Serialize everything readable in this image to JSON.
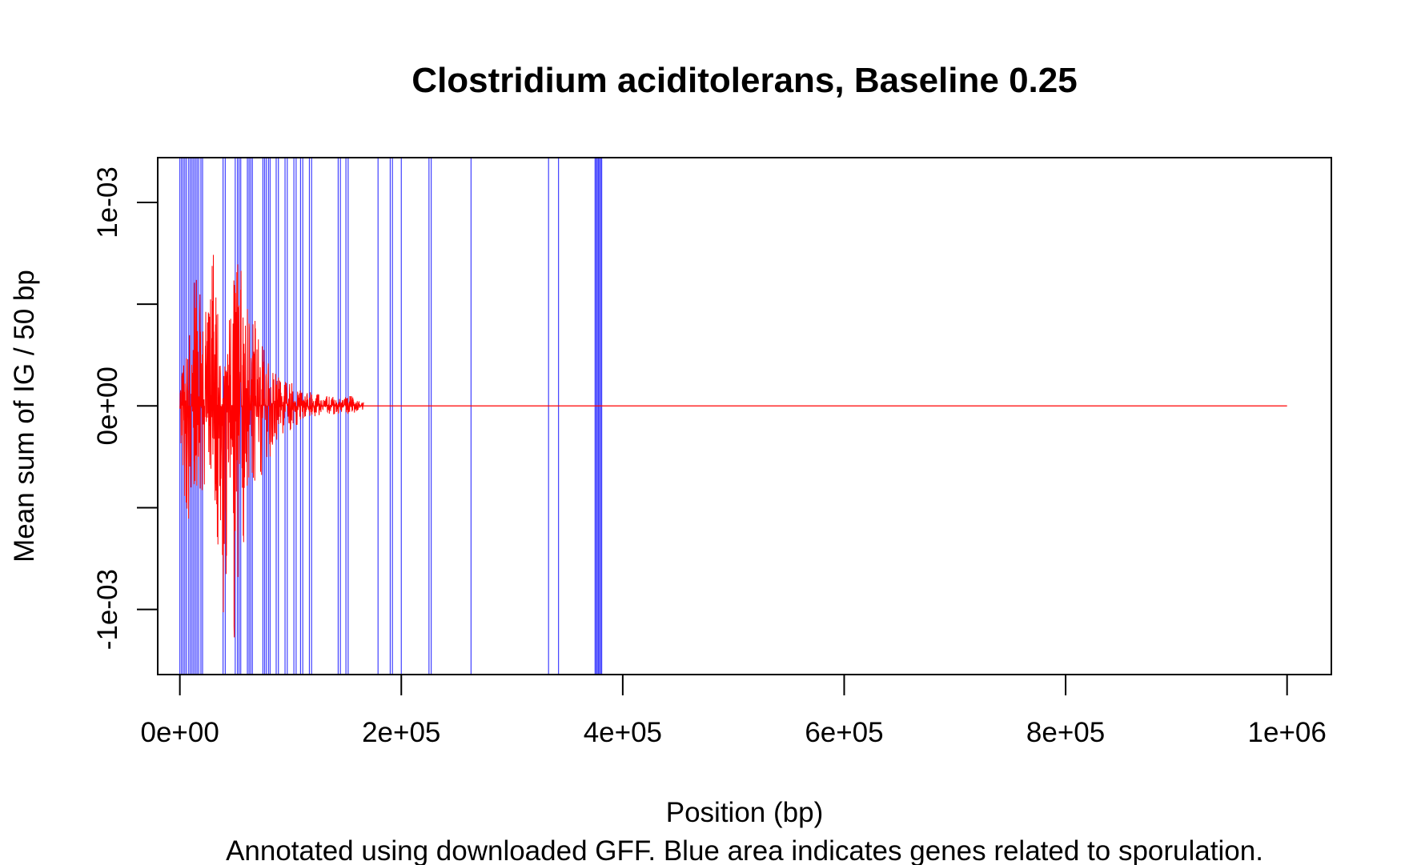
{
  "chart_data": {
    "type": "line",
    "title": "Clostridium aciditolerans, Baseline 0.25",
    "xlabel": "Position (bp)",
    "ylabel": "Mean sum of IG / 50 bp",
    "subtitle": "Annotated using downloaded GFF. Blue area indicates genes related to sporulation.",
    "xlim": [
      -20000,
      1040000
    ],
    "ylim": [
      -0.00132,
      0.00122
    ],
    "x_ticks": [
      0,
      200000,
      400000,
      600000,
      800000,
      1000000
    ],
    "x_tick_labels": [
      "0e+00",
      "2e+05",
      "4e+05",
      "6e+05",
      "8e+05",
      "1e+06"
    ],
    "y_ticks": [
      -0.001,
      -0.0005,
      0,
      0.0005,
      0.001
    ],
    "y_tick_labels": {
      "-0.001": "-1e-03",
      "0": "0e+00",
      "0.001": "1e-03"
    },
    "grid": false,
    "colors": {
      "signal": "#ff0000",
      "sporulation": "#0000ff",
      "axis": "#000000"
    },
    "series": [
      {
        "color": "#ff0000",
        "envelope": [
          {
            "x": 0,
            "min": -0.0002,
            "max": 0.00012
          },
          {
            "x": 5000,
            "min": -0.0006,
            "max": 0.00028
          },
          {
            "x": 12000,
            "min": -0.0005,
            "max": 0.0006
          },
          {
            "x": 18000,
            "min": -0.00045,
            "max": 0.00068
          },
          {
            "x": 25000,
            "min": -0.00035,
            "max": 0.00045
          },
          {
            "x": 30000,
            "min": -0.00045,
            "max": 0.00084
          },
          {
            "x": 37000,
            "min": -0.00093,
            "max": 0.0003
          },
          {
            "x": 42000,
            "min": -0.00115,
            "max": 0.00025
          },
          {
            "x": 48000,
            "min": -0.00125,
            "max": 0.00075
          },
          {
            "x": 52000,
            "min": -0.0009,
            "max": 0.00098
          },
          {
            "x": 58000,
            "min": -0.00068,
            "max": 0.00045
          },
          {
            "x": 63000,
            "min": -0.0005,
            "max": 0.0005
          },
          {
            "x": 70000,
            "min": -0.0004,
            "max": 0.00045
          },
          {
            "x": 78000,
            "min": -0.00032,
            "max": 0.00025
          },
          {
            "x": 85000,
            "min": -0.0002,
            "max": 0.0002
          },
          {
            "x": 95000,
            "min": -0.00014,
            "max": 0.00013
          },
          {
            "x": 105000,
            "min": -0.0001,
            "max": 0.00011
          },
          {
            "x": 115000,
            "min": -6e-05,
            "max": 7e-05
          },
          {
            "x": 125000,
            "min": -5e-05,
            "max": 6e-05
          },
          {
            "x": 135000,
            "min": -4e-05,
            "max": 5e-05
          },
          {
            "x": 145000,
            "min": -5e-05,
            "max": 4e-05
          },
          {
            "x": 155000,
            "min": -4e-05,
            "max": 5e-05
          },
          {
            "x": 166000,
            "min": -2e-05,
            "max": 2e-05
          }
        ],
        "flat_segment": {
          "x_start": 166000,
          "x_end": 1000000,
          "y": 0
        }
      }
    ],
    "sporulation_gene_positions": [
      0,
      1500,
      3000,
      4500,
      6000,
      8000,
      9500,
      11000,
      12500,
      14000,
      15500,
      17000,
      19000,
      20500,
      39000,
      41000,
      50000,
      52000,
      53500,
      55000,
      61000,
      62500,
      64000,
      65500,
      75000,
      76500,
      78000,
      80000,
      81500,
      87000,
      89000,
      95000,
      97000,
      103000,
      105000,
      109000,
      111000,
      117000,
      119000,
      143000,
      145000,
      150000,
      152000,
      179000,
      190000,
      192000,
      200000,
      225000,
      227000,
      263000,
      333000,
      342000,
      375000,
      376000,
      377000,
      378000,
      379000,
      380000,
      381000
    ]
  }
}
